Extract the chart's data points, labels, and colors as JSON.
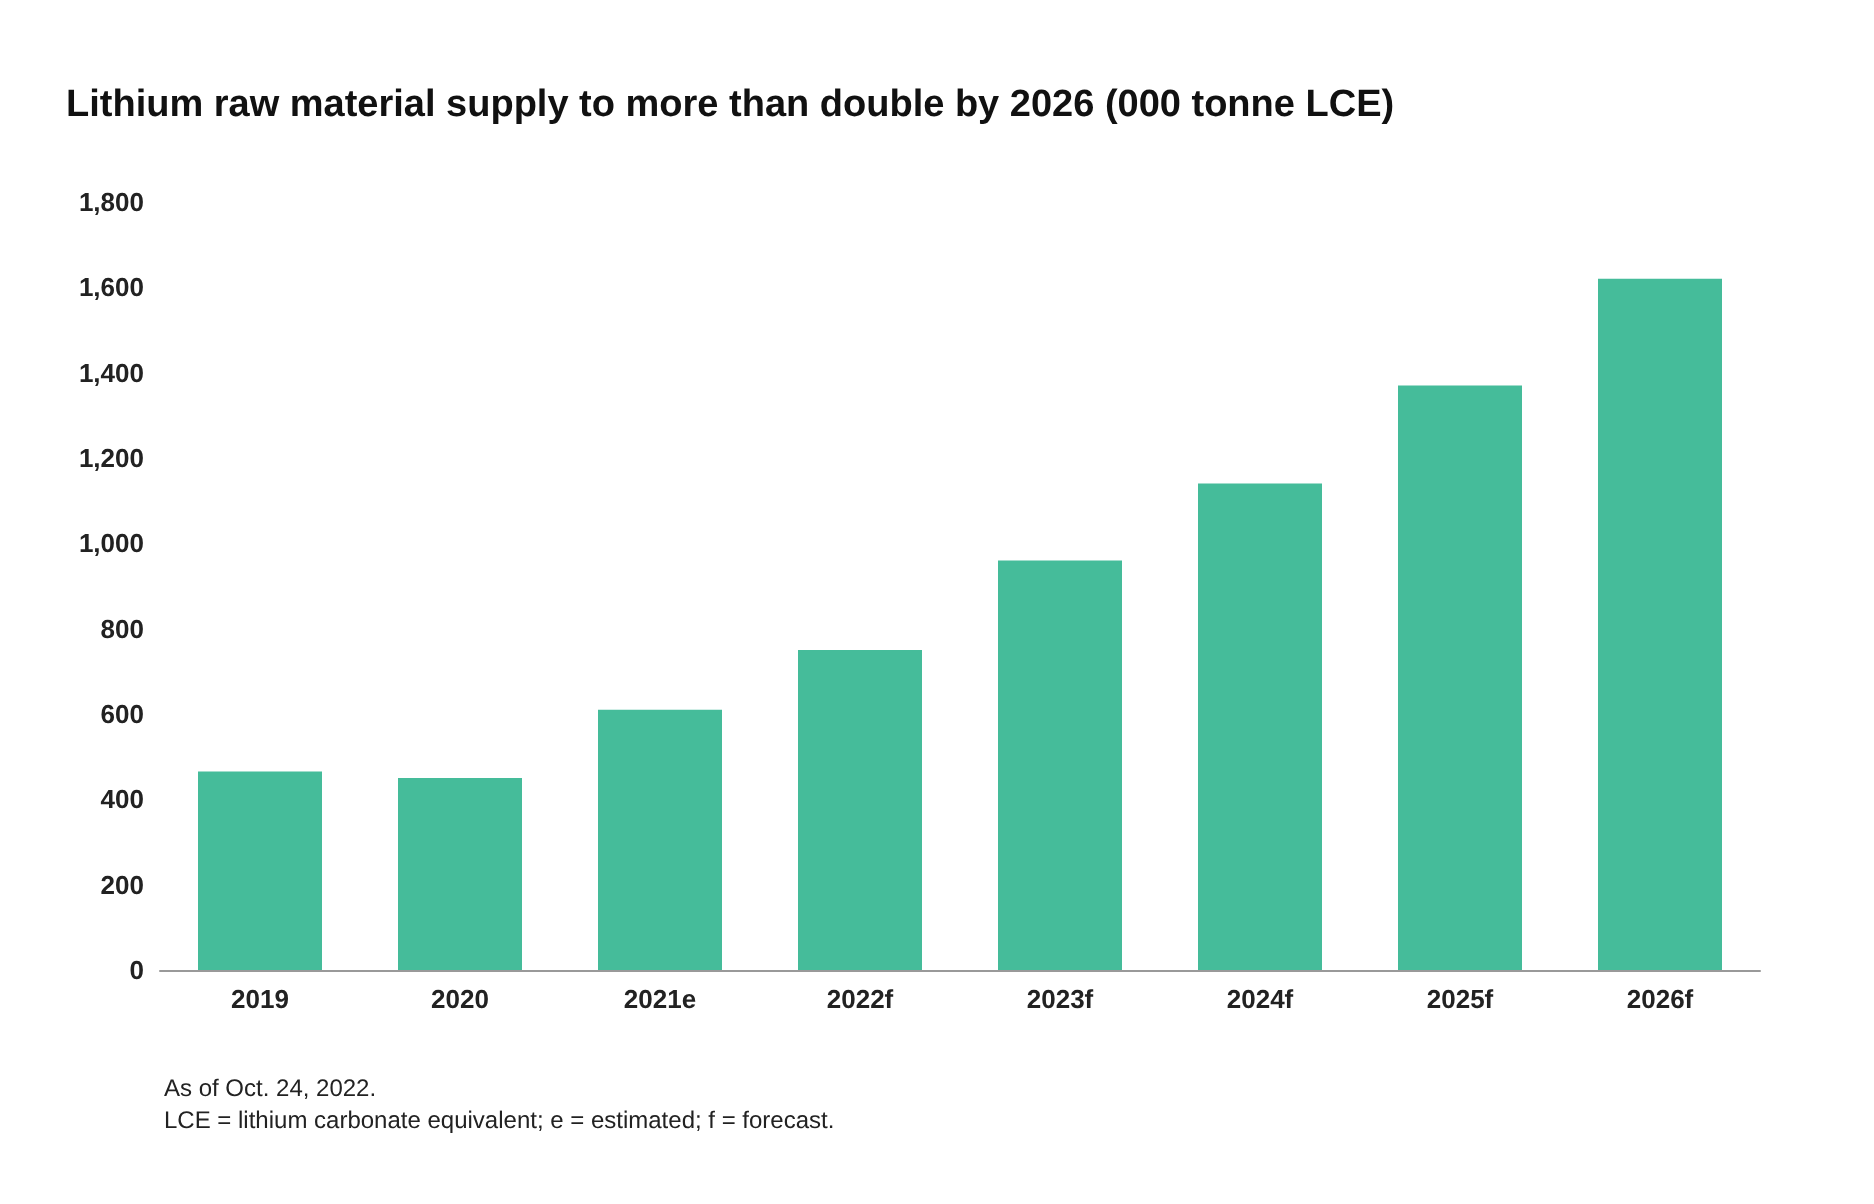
{
  "chart_data": {
    "type": "bar",
    "title": "Lithium raw material supply to more than double by 2026 (000 tonne LCE)",
    "categories": [
      "2019",
      "2020",
      "2021e",
      "2022f",
      "2023f",
      "2024f",
      "2025f",
      "2026f"
    ],
    "values": [
      465,
      450,
      610,
      750,
      960,
      1140,
      1370,
      1620
    ],
    "color": "#45bc9a",
    "ylim": [
      0,
      1800
    ],
    "yticks": [
      0,
      {
        "value": 200,
        "label": "200"
      },
      {
        "value": 400,
        "label": "400"
      },
      {
        "value": 600,
        "label": "600"
      },
      {
        "value": 800,
        "label": "800"
      },
      {
        "value": 1000,
        "label": "1,000"
      },
      {
        "value": 1200,
        "label": "1,200"
      },
      {
        "value": 1400,
        "label": "1,400"
      },
      {
        "value": 1600,
        "label": "1,600"
      },
      {
        "value": 1800,
        "label": "1,800"
      }
    ],
    "grid": false,
    "annotations": [
      "As of Oct. 24, 2022.",
      "LCE = lithium carbonate equivalent; e = estimated; f = forecast."
    ]
  }
}
